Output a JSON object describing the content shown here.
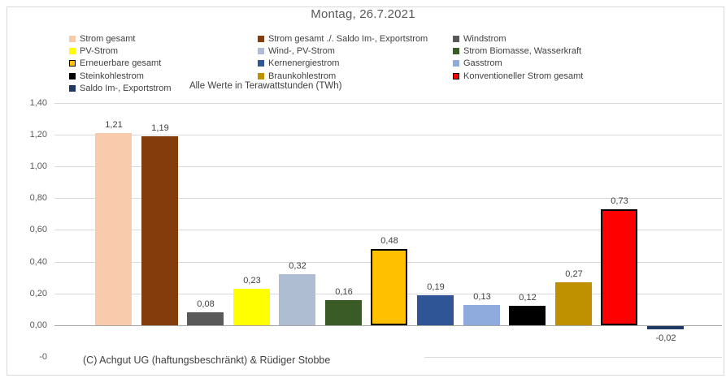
{
  "title": "Montag, 26.7.2021",
  "subtitle": "Alle Werte in Terawattstunden (TWh)",
  "copyright": "(C) Achgut UG (haftungsbeschränkt) & Rüdiger Stobbe",
  "chart_data": {
    "type": "bar",
    "title": "Montag, 26.7.2021",
    "note": "Alle Werte in Terawattstunden (TWh)",
    "unit": "TWh",
    "ylim": [
      -0.2,
      1.4
    ],
    "grid": true,
    "legend_position": "top",
    "categories": [
      "Strom gesamt",
      "Strom gesamt ./. Saldo Im-, Exportstrom",
      "Windstrom",
      "PV-Strom",
      "Wind-, PV-Strom",
      "Strom Biomasse, Wasserkraft",
      "Erneuerbare gesamt",
      "Kernenergiestrom",
      "Gasstrom",
      "Steinkohlestrom",
      "Braunkohlestrom",
      "Konventioneller Strom gesamt",
      "Saldo Im-, Exportstrom"
    ],
    "values": [
      1.21,
      1.19,
      0.08,
      0.23,
      0.32,
      0.16,
      0.48,
      0.19,
      0.13,
      0.12,
      0.27,
      0.73,
      -0.02
    ],
    "value_labels": [
      "1,21",
      "1,19",
      "0,08",
      "0,23",
      "0,32",
      "0,16",
      "0,48",
      "0,19",
      "0,13",
      "0,12",
      "0,27",
      "0,73",
      "-0,02"
    ],
    "bar_colors": [
      "#F8CBAD",
      "#843C0C",
      "#595959",
      "#FFFF00",
      "#AFBDD3",
      "#3B5B26",
      "#FFC000",
      "#2F5597",
      "#8FAADC",
      "#000000",
      "#BF9000",
      "#FF0000",
      "#1F3864"
    ],
    "bar_borders": [
      null,
      null,
      null,
      null,
      null,
      null,
      "#000000",
      null,
      null,
      null,
      null,
      "#000000",
      null
    ],
    "yticks": [
      {
        "value": 1.4,
        "label": "1,40"
      },
      {
        "value": 1.2,
        "label": "1,20"
      },
      {
        "value": 1.0,
        "label": "1,00"
      },
      {
        "value": 0.8,
        "label": "0,80"
      },
      {
        "value": 0.6,
        "label": "0,60"
      },
      {
        "value": 0.4,
        "label": "0,40"
      },
      {
        "value": 0.2,
        "label": "0,20"
      },
      {
        "value": 0.0,
        "label": "0,00"
      },
      {
        "value": -0.2,
        "label": "-0",
        "partial": true
      }
    ]
  },
  "legend": {
    "columns": [
      [
        {
          "label": "Strom gesamt",
          "color": "#F8CBAD"
        },
        {
          "label": "PV-Strom",
          "color": "#FFFF00"
        },
        {
          "label": "Erneuerbare gesamt",
          "color": "#FFC000",
          "border": "#000000"
        },
        {
          "label": "Steinkohlestrom",
          "color": "#000000"
        },
        {
          "label": "Saldo Im-, Exportstrom",
          "color": "#1F3864"
        }
      ],
      [
        {
          "label": "Strom gesamt ./. Saldo Im-, Exportstrom",
          "color": "#843C0C"
        },
        {
          "label": "Wind-, PV-Strom",
          "color": "#AFBDD3"
        },
        {
          "label": "Kernenergiestrom",
          "color": "#2F5597"
        },
        {
          "label": "Braunkohlestrom",
          "color": "#BF9000"
        }
      ],
      [
        {
          "label": "Windstrom",
          "color": "#595959"
        },
        {
          "label": "Strom Biomasse, Wasserkraft",
          "color": "#3B5B26"
        },
        {
          "label": "Gasstrom",
          "color": "#8FAADC"
        },
        {
          "label": "Konventioneller Strom gesamt",
          "color": "#FF0000",
          "border": "#000000"
        }
      ]
    ]
  }
}
